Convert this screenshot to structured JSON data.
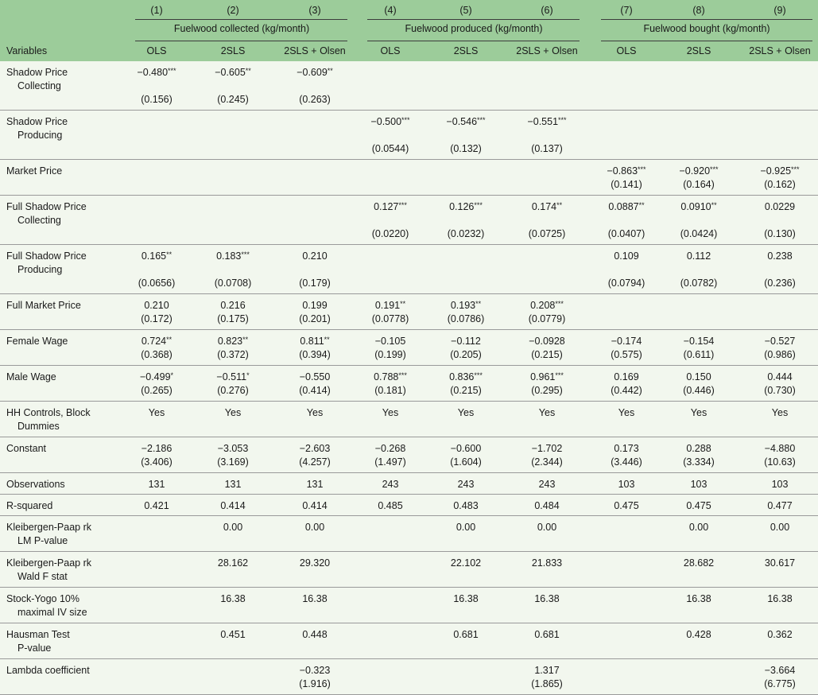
{
  "header": {
    "col_numbers": [
      "(1)",
      "(2)",
      "(3)",
      "(4)",
      "(5)",
      "(6)",
      "(7)",
      "(8)",
      "(9)"
    ],
    "groups": [
      "Fuelwood collected (kg/month)",
      "Fuelwood produced (kg/month)",
      "Fuelwood bought (kg/month)"
    ],
    "variables_label": "Variables",
    "methods": [
      "OLS",
      "2SLS",
      "2SLS + Olsen",
      "OLS",
      "2SLS",
      "2SLS + Olsen",
      "OLS",
      "2SLS",
      "2SLS + Olsen"
    ]
  },
  "rows": [
    {
      "label": [
        "Shadow Price",
        "Collecting"
      ],
      "coef": [
        [
          "−0.480",
          "***"
        ],
        [
          "−0.605",
          "**"
        ],
        [
          "−0.609",
          "**"
        ],
        null,
        null,
        null,
        null,
        null,
        null
      ],
      "se": [
        "(0.156)",
        "(0.245)",
        "(0.263)",
        null,
        null,
        null,
        null,
        null,
        null
      ]
    },
    {
      "label": [
        "Shadow Price",
        "Producing"
      ],
      "coef": [
        null,
        null,
        null,
        [
          "−0.500",
          "***"
        ],
        [
          "−0.546",
          "***"
        ],
        [
          "−0.551",
          "***"
        ],
        null,
        null,
        null
      ],
      "se": [
        null,
        null,
        null,
        "(0.0544)",
        "(0.132)",
        "(0.137)",
        null,
        null,
        null
      ]
    },
    {
      "label": [
        "Market Price"
      ],
      "coef": [
        null,
        null,
        null,
        null,
        null,
        null,
        [
          "−0.863",
          "***"
        ],
        [
          "−0.920",
          "***"
        ],
        [
          "−0.925",
          "***"
        ]
      ],
      "se": [
        null,
        null,
        null,
        null,
        null,
        null,
        "(0.141)",
        "(0.164)",
        "(0.162)"
      ]
    },
    {
      "label": [
        "Full Shadow Price",
        "Collecting"
      ],
      "coef": [
        null,
        null,
        null,
        [
          "0.127",
          "***"
        ],
        [
          "0.126",
          "***"
        ],
        [
          "0.174",
          "**"
        ],
        [
          "0.0887",
          "**"
        ],
        [
          "0.0910",
          "**"
        ],
        [
          "0.0229",
          ""
        ]
      ],
      "se": [
        null,
        null,
        null,
        "(0.0220)",
        "(0.0232)",
        "(0.0725)",
        "(0.0407)",
        "(0.0424)",
        "(0.130)"
      ]
    },
    {
      "label": [
        "Full Shadow Price",
        "Producing"
      ],
      "coef": [
        [
          "0.165",
          "**"
        ],
        [
          "0.183",
          "***"
        ],
        [
          "0.210",
          ""
        ],
        null,
        null,
        null,
        [
          "0.109",
          ""
        ],
        [
          "0.112",
          ""
        ],
        [
          "0.238",
          ""
        ]
      ],
      "se": [
        "(0.0656)",
        "(0.0708)",
        "(0.179)",
        null,
        null,
        null,
        "(0.0794)",
        "(0.0782)",
        "(0.236)"
      ]
    },
    {
      "label": [
        "Full Market Price"
      ],
      "coef": [
        [
          "0.210",
          ""
        ],
        [
          "0.216",
          ""
        ],
        [
          "0.199",
          ""
        ],
        [
          "0.191",
          "**"
        ],
        [
          "0.193",
          "**"
        ],
        [
          "0.208",
          "***"
        ],
        null,
        null,
        null
      ],
      "se": [
        "(0.172)",
        "(0.175)",
        "(0.201)",
        "(0.0778)",
        "(0.0786)",
        "(0.0779)",
        null,
        null,
        null
      ]
    },
    {
      "label": [
        "Female Wage"
      ],
      "coef": [
        [
          "0.724",
          "**"
        ],
        [
          "0.823",
          "**"
        ],
        [
          "0.811",
          "**"
        ],
        [
          "−0.105",
          ""
        ],
        [
          "−0.112",
          ""
        ],
        [
          "−0.0928",
          ""
        ],
        [
          "−0.174",
          ""
        ],
        [
          "−0.154",
          ""
        ],
        [
          "−0.527",
          ""
        ]
      ],
      "se": [
        "(0.368)",
        "(0.372)",
        "(0.394)",
        "(0.199)",
        "(0.205)",
        "(0.215)",
        "(0.575)",
        "(0.611)",
        "(0.986)"
      ]
    },
    {
      "label": [
        "Male Wage"
      ],
      "coef": [
        [
          "−0.499",
          "*"
        ],
        [
          "−0.511",
          "*"
        ],
        [
          "−0.550",
          ""
        ],
        [
          "0.788",
          "***"
        ],
        [
          "0.836",
          "***"
        ],
        [
          "0.961",
          "***"
        ],
        [
          "0.169",
          ""
        ],
        [
          "0.150",
          ""
        ],
        [
          "0.444",
          ""
        ]
      ],
      "se": [
        "(0.265)",
        "(0.276)",
        "(0.414)",
        "(0.181)",
        "(0.215)",
        "(0.295)",
        "(0.442)",
        "(0.446)",
        "(0.730)"
      ]
    },
    {
      "label": [
        "HH Controls, Block",
        "Dummies"
      ],
      "coef": [
        [
          "Yes",
          ""
        ],
        [
          "Yes",
          ""
        ],
        [
          "Yes",
          ""
        ],
        [
          "Yes",
          ""
        ],
        [
          "Yes",
          ""
        ],
        [
          "Yes",
          ""
        ],
        [
          "Yes",
          ""
        ],
        [
          "Yes",
          ""
        ],
        [
          "Yes",
          ""
        ]
      ],
      "se": [
        null,
        null,
        null,
        null,
        null,
        null,
        null,
        null,
        null
      ]
    },
    {
      "label": [
        "Constant"
      ],
      "coef": [
        [
          "−2.186",
          ""
        ],
        [
          "−3.053",
          ""
        ],
        [
          "−2.603",
          ""
        ],
        [
          "−0.268",
          ""
        ],
        [
          "−0.600",
          ""
        ],
        [
          "−1.702",
          ""
        ],
        [
          "0.173",
          ""
        ],
        [
          "0.288",
          ""
        ],
        [
          "−4.880",
          ""
        ]
      ],
      "se": [
        "(3.406)",
        "(3.169)",
        "(4.257)",
        "(1.497)",
        "(1.604)",
        "(2.344)",
        "(3.446)",
        "(3.334)",
        "(10.63)"
      ]
    },
    {
      "label": [
        "Observations"
      ],
      "coef": [
        [
          "131",
          ""
        ],
        [
          "131",
          ""
        ],
        [
          "131",
          ""
        ],
        [
          "243",
          ""
        ],
        [
          "243",
          ""
        ],
        [
          "243",
          ""
        ],
        [
          "103",
          ""
        ],
        [
          "103",
          ""
        ],
        [
          "103",
          ""
        ]
      ],
      "se": [
        null,
        null,
        null,
        null,
        null,
        null,
        null,
        null,
        null
      ]
    },
    {
      "label": [
        "R-squared"
      ],
      "coef": [
        [
          "0.421",
          ""
        ],
        [
          "0.414",
          ""
        ],
        [
          "0.414",
          ""
        ],
        [
          "0.485",
          ""
        ],
        [
          "0.483",
          ""
        ],
        [
          "0.484",
          ""
        ],
        [
          "0.475",
          ""
        ],
        [
          "0.475",
          ""
        ],
        [
          "0.477",
          ""
        ]
      ],
      "se": [
        null,
        null,
        null,
        null,
        null,
        null,
        null,
        null,
        null
      ]
    },
    {
      "label": [
        "Kleibergen-Paap rk",
        "LM P-value"
      ],
      "coef": [
        null,
        [
          "0.00",
          ""
        ],
        [
          "0.00",
          ""
        ],
        null,
        [
          "0.00",
          ""
        ],
        [
          "0.00",
          ""
        ],
        null,
        [
          "0.00",
          ""
        ],
        [
          "0.00",
          ""
        ]
      ],
      "se": [
        null,
        null,
        null,
        null,
        null,
        null,
        null,
        null,
        null
      ]
    },
    {
      "label": [
        "Kleibergen-Paap rk",
        "Wald F stat"
      ],
      "coef": [
        null,
        [
          "28.162",
          ""
        ],
        [
          "29.320",
          ""
        ],
        null,
        [
          "22.102",
          ""
        ],
        [
          "21.833",
          ""
        ],
        null,
        [
          "28.682",
          ""
        ],
        [
          "30.617",
          ""
        ]
      ],
      "se": [
        null,
        null,
        null,
        null,
        null,
        null,
        null,
        null,
        null
      ]
    },
    {
      "label": [
        "Stock-Yogo 10%",
        "maximal IV size"
      ],
      "coef": [
        null,
        [
          "16.38",
          ""
        ],
        [
          "16.38",
          ""
        ],
        null,
        [
          "16.38",
          ""
        ],
        [
          "16.38",
          ""
        ],
        null,
        [
          "16.38",
          ""
        ],
        [
          "16.38",
          ""
        ]
      ],
      "se": [
        null,
        null,
        null,
        null,
        null,
        null,
        null,
        null,
        null
      ]
    },
    {
      "label": [
        "Hausman Test",
        "P-value"
      ],
      "coef": [
        null,
        [
          "0.451",
          ""
        ],
        [
          "0.448",
          ""
        ],
        null,
        [
          "0.681",
          ""
        ],
        [
          "0.681",
          ""
        ],
        null,
        [
          "0.428",
          ""
        ],
        [
          "0.362",
          ""
        ]
      ],
      "se": [
        null,
        null,
        null,
        null,
        null,
        null,
        null,
        null,
        null
      ]
    },
    {
      "label": [
        "Lambda coefficient"
      ],
      "coef": [
        null,
        null,
        [
          "−0.323",
          ""
        ],
        null,
        null,
        [
          "1.317",
          ""
        ],
        null,
        null,
        [
          "−3.664",
          ""
        ]
      ],
      "se": [
        null,
        null,
        "(1.916)",
        null,
        null,
        "(1.865)",
        null,
        null,
        "(6.775)"
      ]
    }
  ]
}
